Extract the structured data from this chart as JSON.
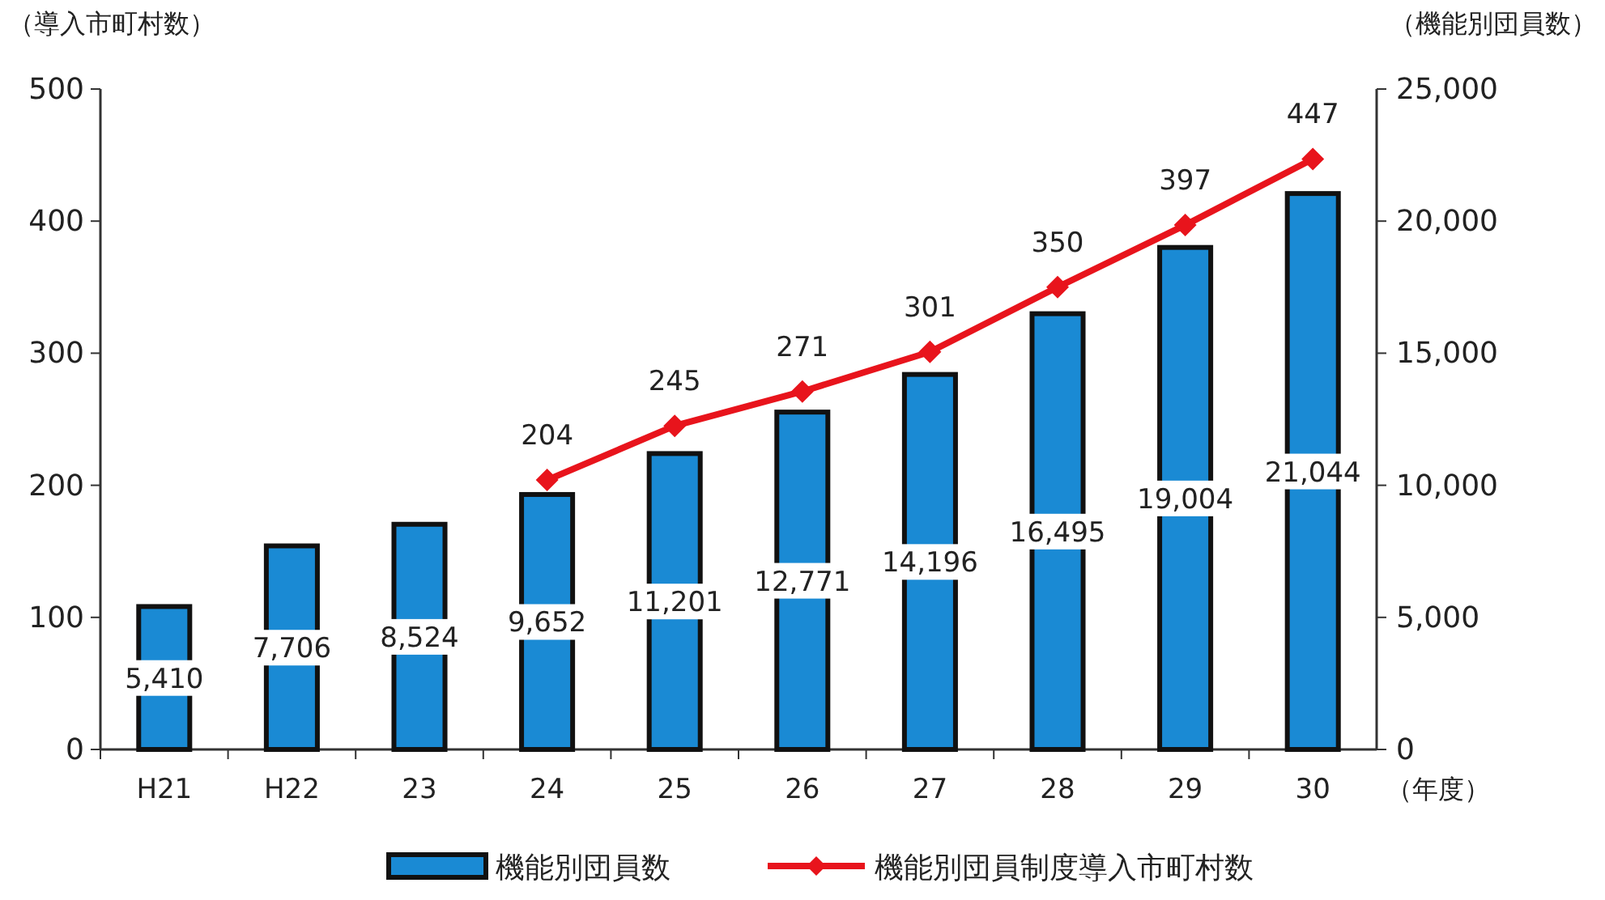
{
  "chart_data": {
    "type": "bar",
    "ylabel": "（導入市町村数）",
    "y2label": "（機能別団員数）",
    "xlabel": "（年度）",
    "categories": [
      "H21",
      "H22",
      "23",
      "24",
      "25",
      "26",
      "27",
      "28",
      "29",
      "30"
    ],
    "series": [
      {
        "name": "機能別団員数",
        "axis": "y2",
        "color": "#1a8ad4",
        "values": [
          5410,
          7706,
          8524,
          9652,
          11201,
          12771,
          14196,
          16495,
          19004,
          21044
        ],
        "value_labels": [
          "5,410",
          "7,706",
          "8,524",
          "9,652",
          "11,201",
          "12,771",
          "14,196",
          "16,495",
          "19,004",
          "21,044"
        ]
      },
      {
        "name": "機能別団員制度導入市町村数",
        "type": "line",
        "axis": "y",
        "color": "#e8141c",
        "marker": "diamond",
        "values": [
          null,
          null,
          null,
          204,
          245,
          271,
          301,
          350,
          397,
          447
        ]
      }
    ],
    "ylim": [
      0,
      500
    ],
    "yticks": [
      0,
      100,
      200,
      300,
      400,
      500
    ],
    "y2lim": [
      0,
      25000
    ],
    "y2ticks": [
      {
        "value": 0,
        "label": "0"
      },
      {
        "value": 5000,
        "label": "5,000"
      },
      {
        "value": 10000,
        "label": "10,000"
      },
      {
        "value": 15000,
        "label": "15,000"
      },
      {
        "value": 20000,
        "label": "20,000"
      },
      {
        "value": 25000,
        "label": "25,000"
      }
    ],
    "data_labels": true,
    "legend": "bottom",
    "grid": false
  }
}
